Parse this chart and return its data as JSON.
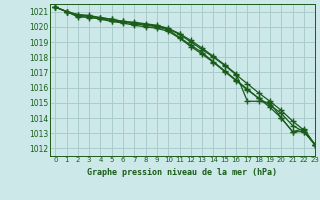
{
  "xlabel": "Graphe pression niveau de la mer (hPa)",
  "bg_color": "#cce8e8",
  "grid_color": "#aacccc",
  "line_color": "#1a5c1a",
  "ylim": [
    1011.5,
    1021.5
  ],
  "xlim": [
    -0.5,
    23
  ],
  "yticks": [
    1012,
    1013,
    1014,
    1015,
    1016,
    1017,
    1018,
    1019,
    1020,
    1021
  ],
  "xticks": [
    0,
    1,
    2,
    3,
    4,
    5,
    6,
    7,
    8,
    9,
    10,
    11,
    12,
    13,
    14,
    15,
    16,
    17,
    18,
    19,
    20,
    21,
    22,
    23
  ],
  "series": [
    [
      1021.3,
      1021.0,
      1020.7,
      1020.6,
      1020.55,
      1020.4,
      1020.3,
      1020.2,
      1020.1,
      1020.0,
      1019.8,
      1019.3,
      1018.8,
      1018.3,
      1017.7,
      1017.1,
      1016.5,
      1015.9,
      1015.3,
      1014.7,
      1014.0,
      1013.1,
      1013.1,
      1012.2
    ],
    [
      1021.3,
      1021.0,
      1020.65,
      1020.65,
      1020.5,
      1020.35,
      1020.25,
      1020.1,
      1020.0,
      1019.9,
      1019.7,
      1019.25,
      1018.7,
      1018.2,
      1017.65,
      1017.05,
      1016.45,
      1015.85,
      1015.3,
      1014.85,
      1014.3,
      1013.5,
      1013.1,
      1012.25
    ],
    [
      1021.3,
      1021.0,
      1020.8,
      1020.75,
      1020.6,
      1020.5,
      1020.35,
      1020.25,
      1020.15,
      1020.05,
      1019.85,
      1019.5,
      1019.0,
      1018.5,
      1018.0,
      1017.45,
      1016.85,
      1016.25,
      1015.65,
      1015.1,
      1014.5,
      1013.8,
      1013.2,
      1012.25
    ],
    [
      1021.3,
      1021.0,
      1020.8,
      1020.7,
      1020.6,
      1020.5,
      1020.35,
      1020.3,
      1020.2,
      1020.1,
      1019.9,
      1019.55,
      1019.1,
      1018.6,
      1018.05,
      1017.5,
      1016.9,
      1015.1,
      1015.1,
      1015.0,
      1014.0,
      1013.1,
      1013.3,
      1012.2
    ]
  ]
}
